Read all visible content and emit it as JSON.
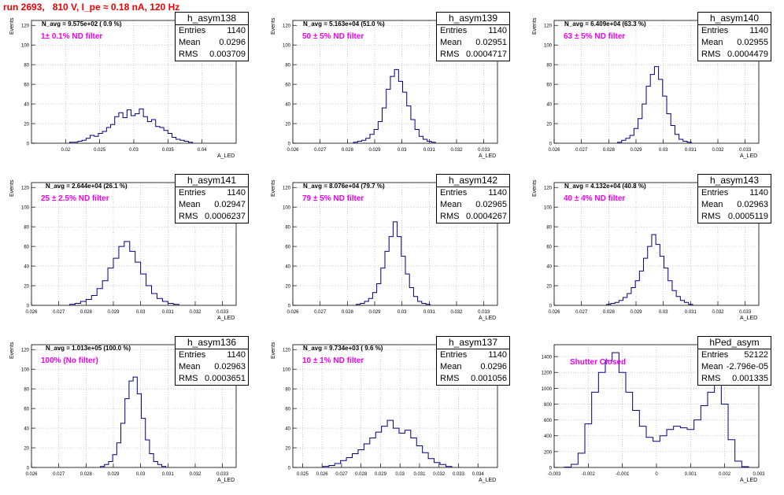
{
  "page_title": "run 2693,   810 V, I_pe ≈ 0.18 nA, 120 Hz",
  "chart_data": [
    {
      "type": "histogram",
      "name": "h_asym138",
      "entries": "1140",
      "mean": "0.0296",
      "rms": "0.003709",
      "n_avg": "N_avg = 9.575e+02 ( 0.9 %)",
      "filter": "1± 0.1% ND filter",
      "xlabel": "A_LED",
      "ylabel": "Events",
      "xlim": [
        0.015,
        0.045
      ],
      "ylim": [
        0,
        125
      ],
      "yticks": [
        0,
        20,
        40,
        60,
        80,
        100,
        120
      ],
      "xticks": [
        0.02,
        0.025,
        0.03,
        0.035,
        0.04
      ],
      "xtick_labels": [
        "0.02",
        "0.025",
        "0.03",
        "0.035",
        "0.04"
      ],
      "bins": [
        [
          0.0209,
          1
        ],
        [
          0.0215,
          1
        ],
        [
          0.0221,
          2
        ],
        [
          0.0227,
          3
        ],
        [
          0.0233,
          5
        ],
        [
          0.0239,
          8
        ],
        [
          0.0245,
          7
        ],
        [
          0.0251,
          10
        ],
        [
          0.0257,
          12
        ],
        [
          0.0263,
          16
        ],
        [
          0.0269,
          19
        ],
        [
          0.0275,
          27
        ],
        [
          0.0281,
          31
        ],
        [
          0.0287,
          26
        ],
        [
          0.0293,
          34
        ],
        [
          0.0299,
          28
        ],
        [
          0.0305,
          30
        ],
        [
          0.0311,
          35
        ],
        [
          0.0317,
          27
        ],
        [
          0.0323,
          22
        ],
        [
          0.0329,
          24
        ],
        [
          0.0335,
          17
        ],
        [
          0.0341,
          16
        ],
        [
          0.0347,
          13
        ],
        [
          0.0353,
          10
        ],
        [
          0.0359,
          6
        ],
        [
          0.0365,
          4
        ],
        [
          0.0371,
          3
        ],
        [
          0.0377,
          2
        ],
        [
          0.0383,
          1
        ]
      ]
    },
    {
      "type": "histogram",
      "name": "h_asym139",
      "entries": "1140",
      "mean": "0.02951",
      "rms": "0.0004717",
      "n_avg": "N_avg = 5.163e+04 (51.0 %)",
      "filter": "50 ± 5% ND filter",
      "xlabel": "A_LED",
      "ylabel": "Events",
      "xlim": [
        0.026,
        0.0335
      ],
      "ylim": [
        0,
        125
      ],
      "yticks": [
        0,
        20,
        40,
        60,
        80,
        100,
        120
      ],
      "xticks": [
        0.026,
        0.027,
        0.028,
        0.029,
        0.03,
        0.031,
        0.032,
        0.033
      ],
      "xtick_labels": [
        "0.026",
        "0.027",
        "0.028",
        "0.029",
        "0.03",
        "0.031",
        "0.032",
        "0.033"
      ],
      "bins": [
        [
          0.0283,
          1
        ],
        [
          0.02845,
          2
        ],
        [
          0.0286,
          3
        ],
        [
          0.02875,
          5
        ],
        [
          0.0289,
          9
        ],
        [
          0.02905,
          14
        ],
        [
          0.0292,
          22
        ],
        [
          0.02935,
          36
        ],
        [
          0.0295,
          55
        ],
        [
          0.02965,
          68
        ],
        [
          0.0298,
          75
        ],
        [
          0.02995,
          63
        ],
        [
          0.0301,
          52
        ],
        [
          0.03025,
          38
        ],
        [
          0.0304,
          24
        ],
        [
          0.03055,
          14
        ],
        [
          0.0307,
          7
        ],
        [
          0.03085,
          4
        ],
        [
          0.031,
          2
        ],
        [
          0.03115,
          1
        ]
      ]
    },
    {
      "type": "histogram",
      "name": "h_asym140",
      "entries": "1140",
      "mean": "0.02955",
      "rms": "0.0004479",
      "n_avg": "N_avg = 6.409e+04 (63.3 %)",
      "filter": "63 ± 5% ND filter",
      "xlabel": "A_LED",
      "ylabel": "Events",
      "xlim": [
        0.026,
        0.0335
      ],
      "ylim": [
        0,
        125
      ],
      "yticks": [
        0,
        20,
        40,
        60,
        80,
        100,
        120
      ],
      "xticks": [
        0.026,
        0.027,
        0.028,
        0.029,
        0.03,
        0.031,
        0.032,
        0.033
      ],
      "xtick_labels": [
        "0.026",
        "0.027",
        "0.028",
        "0.029",
        "0.03",
        "0.031",
        "0.032",
        "0.033"
      ],
      "bins": [
        [
          0.0284,
          1
        ],
        [
          0.02855,
          3
        ],
        [
          0.0287,
          5
        ],
        [
          0.02885,
          8
        ],
        [
          0.029,
          15
        ],
        [
          0.02915,
          25
        ],
        [
          0.0293,
          40
        ],
        [
          0.02945,
          58
        ],
        [
          0.0296,
          70
        ],
        [
          0.02975,
          78
        ],
        [
          0.0299,
          65
        ],
        [
          0.03005,
          48
        ],
        [
          0.0302,
          30
        ],
        [
          0.03035,
          18
        ],
        [
          0.0305,
          9
        ],
        [
          0.03065,
          4
        ],
        [
          0.0308,
          2
        ],
        [
          0.03095,
          1
        ]
      ]
    },
    {
      "type": "histogram",
      "name": "h_asym141",
      "entries": "1140",
      "mean": "0.02947",
      "rms": "0.0006237",
      "n_avg": "N_avg = 2.644e+04 (26.1 %)",
      "filter": "25 ± 2.5% ND filter",
      "xlabel": "A_LED",
      "ylabel": "Events",
      "xlim": [
        0.026,
        0.0335
      ],
      "ylim": [
        0,
        125
      ],
      "yticks": [
        0,
        20,
        40,
        60,
        80,
        100,
        120
      ],
      "xticks": [
        0.026,
        0.027,
        0.028,
        0.029,
        0.03,
        0.031,
        0.032,
        0.033
      ],
      "xtick_labels": [
        "0.026",
        "0.027",
        "0.028",
        "0.029",
        "0.03",
        "0.031",
        "0.032",
        "0.033"
      ],
      "bins": [
        [
          0.0275,
          1
        ],
        [
          0.0277,
          2
        ],
        [
          0.0279,
          4
        ],
        [
          0.0281,
          6
        ],
        [
          0.0283,
          10
        ],
        [
          0.0285,
          17
        ],
        [
          0.0287,
          25
        ],
        [
          0.0289,
          38
        ],
        [
          0.0291,
          48
        ],
        [
          0.0293,
          60
        ],
        [
          0.0295,
          65
        ],
        [
          0.0297,
          55
        ],
        [
          0.0299,
          44
        ],
        [
          0.0301,
          32
        ],
        [
          0.0303,
          20
        ],
        [
          0.0305,
          12
        ],
        [
          0.0307,
          7
        ],
        [
          0.0309,
          4
        ],
        [
          0.0311,
          2
        ],
        [
          0.0313,
          1
        ]
      ]
    },
    {
      "type": "histogram",
      "name": "h_asym142",
      "entries": "1140",
      "mean": "0.02965",
      "rms": "0.0004267",
      "n_avg": "N_avg = 8.076e+04 (79.7 %)",
      "filter": "79 ± 5% ND filter",
      "xlabel": "A_LED",
      "ylabel": "Events",
      "xlim": [
        0.026,
        0.0335
      ],
      "ylim": [
        0,
        125
      ],
      "yticks": [
        0,
        20,
        40,
        60,
        80,
        100,
        120
      ],
      "xticks": [
        0.026,
        0.027,
        0.028,
        0.029,
        0.03,
        0.031,
        0.032,
        0.033
      ],
      "xtick_labels": [
        "0.026",
        "0.027",
        "0.028",
        "0.029",
        "0.03",
        "0.031",
        "0.032",
        "0.033"
      ],
      "bins": [
        [
          0.0284,
          1
        ],
        [
          0.02855,
          2
        ],
        [
          0.0287,
          4
        ],
        [
          0.02885,
          7
        ],
        [
          0.029,
          13
        ],
        [
          0.02915,
          22
        ],
        [
          0.0293,
          38
        ],
        [
          0.02945,
          55
        ],
        [
          0.0296,
          70
        ],
        [
          0.02975,
          85
        ],
        [
          0.0299,
          70
        ],
        [
          0.03005,
          50
        ],
        [
          0.0302,
          32
        ],
        [
          0.03035,
          18
        ],
        [
          0.0305,
          9
        ],
        [
          0.03065,
          4
        ],
        [
          0.0308,
          2
        ],
        [
          0.03095,
          1
        ]
      ]
    },
    {
      "type": "histogram",
      "name": "h_asym143",
      "entries": "1140",
      "mean": "0.02963",
      "rms": "0.0005119",
      "n_avg": "N_avg = 4.132e+04 (40.8 %)",
      "filter": "40 ± 4% ND filter",
      "xlabel": "A_LED",
      "ylabel": "Events",
      "xlim": [
        0.026,
        0.0335
      ],
      "ylim": [
        0,
        125
      ],
      "yticks": [
        0,
        20,
        40,
        60,
        80,
        100,
        120
      ],
      "xticks": [
        0.026,
        0.027,
        0.028,
        0.029,
        0.03,
        0.031,
        0.032,
        0.033
      ],
      "xtick_labels": [
        "0.026",
        "0.027",
        "0.028",
        "0.029",
        "0.03",
        "0.031",
        "0.032",
        "0.033"
      ],
      "bins": [
        [
          0.028,
          1
        ],
        [
          0.02815,
          2
        ],
        [
          0.0283,
          3
        ],
        [
          0.02845,
          5
        ],
        [
          0.0286,
          8
        ],
        [
          0.02875,
          12
        ],
        [
          0.0289,
          18
        ],
        [
          0.02905,
          25
        ],
        [
          0.0292,
          35
        ],
        [
          0.02935,
          48
        ],
        [
          0.0295,
          60
        ],
        [
          0.02965,
          72
        ],
        [
          0.0298,
          62
        ],
        [
          0.02995,
          50
        ],
        [
          0.0301,
          38
        ],
        [
          0.03025,
          25
        ],
        [
          0.0304,
          15
        ],
        [
          0.03055,
          9
        ],
        [
          0.0307,
          5
        ],
        [
          0.03085,
          3
        ],
        [
          0.031,
          1
        ]
      ]
    },
    {
      "type": "histogram",
      "name": "h_asym136",
      "entries": "1140",
      "mean": "0.02963",
      "rms": "0.0003651",
      "n_avg": "N_avg = 1.013e+05 (100.0 %)",
      "filter": "100% (No filter)",
      "xlabel": "A_LED",
      "ylabel": "Events",
      "xlim": [
        0.026,
        0.0335
      ],
      "ylim": [
        0,
        125
      ],
      "yticks": [
        0,
        20,
        40,
        60,
        80,
        100,
        120
      ],
      "xticks": [
        0.026,
        0.027,
        0.028,
        0.029,
        0.03,
        0.031,
        0.032,
        0.033
      ],
      "xtick_labels": [
        "0.026",
        "0.027",
        "0.028",
        "0.029",
        "0.03",
        "0.031",
        "0.032",
        "0.033"
      ],
      "bins": [
        [
          0.0286,
          1
        ],
        [
          0.02875,
          3
        ],
        [
          0.0289,
          6
        ],
        [
          0.02905,
          13
        ],
        [
          0.0292,
          25
        ],
        [
          0.02935,
          45
        ],
        [
          0.0295,
          70
        ],
        [
          0.02965,
          88
        ],
        [
          0.0298,
          92
        ],
        [
          0.02995,
          75
        ],
        [
          0.0301,
          50
        ],
        [
          0.03025,
          28
        ],
        [
          0.0304,
          14
        ],
        [
          0.03055,
          6
        ],
        [
          0.0307,
          3
        ],
        [
          0.03085,
          1
        ]
      ]
    },
    {
      "type": "histogram",
      "name": "h_asym137",
      "entries": "1140",
      "mean": "0.0296",
      "rms": "0.001056",
      "n_avg": "N_avg = 9.734e+03 ( 9.6 %)",
      "filter": "10 ± 1% ND filter",
      "xlabel": "A_LED",
      "ylabel": "Events",
      "xlim": [
        0.0245,
        0.035
      ],
      "ylim": [
        0,
        125
      ],
      "yticks": [
        0,
        20,
        40,
        60,
        80,
        100,
        120
      ],
      "xticks": [
        0.025,
        0.026,
        0.027,
        0.028,
        0.029,
        0.03,
        0.031,
        0.032,
        0.033,
        0.034
      ],
      "xtick_labels": [
        "0.025",
        "0.026",
        "0.027",
        "0.028",
        "0.029",
        "0.03",
        "0.031",
        "0.032",
        "0.033",
        "0.034"
      ],
      "bins": [
        [
          0.0262,
          1
        ],
        [
          0.0265,
          2
        ],
        [
          0.0268,
          4
        ],
        [
          0.0271,
          7
        ],
        [
          0.0274,
          10
        ],
        [
          0.0277,
          14
        ],
        [
          0.028,
          18
        ],
        [
          0.0283,
          24
        ],
        [
          0.0286,
          30
        ],
        [
          0.0289,
          36
        ],
        [
          0.0292,
          42
        ],
        [
          0.0295,
          48
        ],
        [
          0.0298,
          40
        ],
        [
          0.0301,
          35
        ],
        [
          0.0304,
          38
        ],
        [
          0.0307,
          30
        ],
        [
          0.031,
          22
        ],
        [
          0.0313,
          15
        ],
        [
          0.0316,
          9
        ],
        [
          0.0319,
          5
        ],
        [
          0.0322,
          3
        ],
        [
          0.0325,
          1
        ]
      ]
    },
    {
      "type": "histogram",
      "name": "hPed_asym",
      "entries": "52122",
      "mean": "-2.796e-05",
      "rms": "0.001335",
      "n_avg": "",
      "filter": "Shutter Closed",
      "xlabel": "A_LED",
      "ylabel": "",
      "xlim": [
        -0.003,
        0.003
      ],
      "ylim": [
        0,
        1550
      ],
      "yticks": [
        0,
        200,
        400,
        600,
        800,
        1000,
        1200,
        1400
      ],
      "xticks": [
        -0.003,
        -0.002,
        -0.001,
        0,
        0.001,
        0.002,
        0.003
      ],
      "xtick_labels": [
        "-0.003",
        "-0.002",
        "-0.001",
        "0",
        "0.001",
        "0.002",
        "0.003"
      ],
      "bins": [
        [
          -0.0026,
          5
        ],
        [
          -0.0024,
          40
        ],
        [
          -0.0022,
          180
        ],
        [
          -0.002,
          550
        ],
        [
          -0.0018,
          950
        ],
        [
          -0.0016,
          1200
        ],
        [
          -0.0014,
          1350
        ],
        [
          -0.0012,
          1450
        ],
        [
          -0.001,
          1200
        ],
        [
          -0.0008,
          950
        ],
        [
          -0.0006,
          720
        ],
        [
          -0.0004,
          520
        ],
        [
          -0.0002,
          380
        ],
        [
          0,
          330
        ],
        [
          0.0002,
          400
        ],
        [
          0.0004,
          480
        ],
        [
          0.0006,
          520
        ],
        [
          0.0008,
          500
        ],
        [
          0.001,
          480
        ],
        [
          0.0012,
          600
        ],
        [
          0.0014,
          780
        ],
        [
          0.0016,
          950
        ],
        [
          0.0018,
          1050
        ],
        [
          0.002,
          800
        ],
        [
          0.0022,
          350
        ],
        [
          0.0024,
          80
        ],
        [
          0.0026,
          10
        ]
      ]
    }
  ]
}
